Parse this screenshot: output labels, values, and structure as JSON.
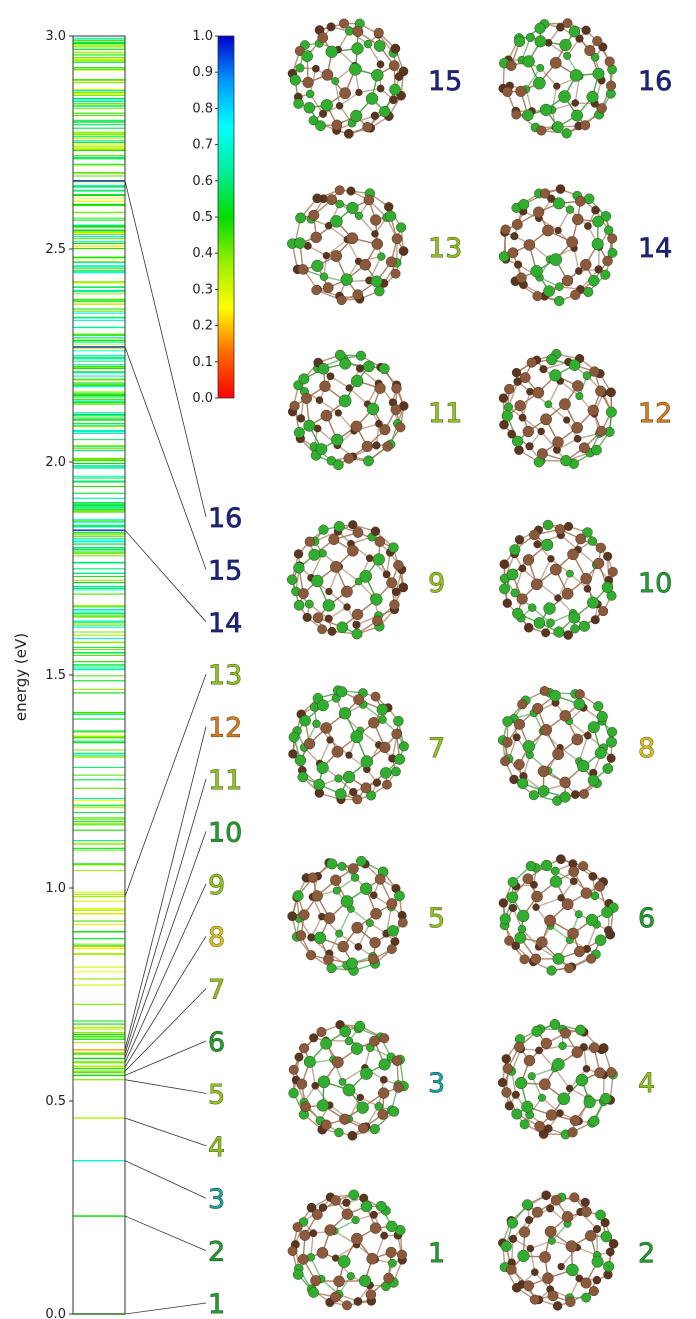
{
  "chart_data": {
    "type": "spectrum",
    "ylabel": "energy (eV)",
    "ylim": [
      0.0,
      3.0
    ],
    "yticks": [
      "0.0",
      "0.5",
      "1.0",
      "1.5",
      "2.0",
      "2.5",
      "3.0"
    ],
    "colorbar": {
      "range": [
        0.0,
        1.0
      ],
      "ticks": [
        "0.0",
        "0.1",
        "0.2",
        "0.3",
        "0.4",
        "0.5",
        "0.6",
        "0.7",
        "0.8",
        "0.9",
        "1.0"
      ],
      "colormap": "jet-reversed (0 red, 0.5 green, 1 blue)"
    },
    "labeled_states": [
      {
        "n": "1",
        "energy": 0.0,
        "value": 0.48
      },
      {
        "n": "2",
        "energy": 0.23,
        "value": 0.5
      },
      {
        "n": "3",
        "energy": 0.36,
        "value": 0.7
      },
      {
        "n": "4",
        "energy": 0.46,
        "value": 0.35
      },
      {
        "n": "5",
        "energy": 0.55,
        "value": 0.38
      },
      {
        "n": "6",
        "energy": 0.56,
        "value": 0.5
      },
      {
        "n": "7",
        "energy": 0.57,
        "value": 0.4
      },
      {
        "n": "8",
        "energy": 0.58,
        "value": 0.28
      },
      {
        "n": "9",
        "energy": 0.59,
        "value": 0.4
      },
      {
        "n": "10",
        "energy": 0.6,
        "value": 0.5
      },
      {
        "n": "11",
        "energy": 0.61,
        "value": 0.42
      },
      {
        "n": "12",
        "energy": 0.62,
        "value": 0.18
      },
      {
        "n": "13",
        "energy": 0.98,
        "value": 0.36
      },
      {
        "n": "14",
        "energy": 1.84,
        "value": 0.97
      },
      {
        "n": "15",
        "energy": 2.27,
        "value": 0.97
      },
      {
        "n": "16",
        "energy": 2.66,
        "value": 0.97
      }
    ],
    "spectrum_bands": [
      {
        "from": 0.55,
        "to": 0.7,
        "count": 16,
        "vmin": 0.3,
        "vmax": 0.55
      },
      {
        "from": 0.72,
        "to": 1.05,
        "count": 26,
        "vmin": 0.2,
        "vmax": 0.55
      },
      {
        "from": 1.05,
        "to": 1.5,
        "count": 48,
        "vmin": 0.25,
        "vmax": 0.65
      },
      {
        "from": 1.5,
        "to": 2.0,
        "count": 95,
        "vmin": 0.35,
        "vmax": 0.75
      },
      {
        "from": 2.0,
        "to": 2.5,
        "count": 110,
        "vmin": 0.3,
        "vmax": 0.75
      },
      {
        "from": 2.5,
        "to": 3.0,
        "count": 120,
        "vmin": 0.25,
        "vmax": 0.7
      }
    ]
  },
  "panels": [
    {
      "n": "15",
      "value": 0.97
    },
    {
      "n": "16",
      "value": 0.97
    },
    {
      "n": "13",
      "value": 0.36
    },
    {
      "n": "14",
      "value": 0.97
    },
    {
      "n": "11",
      "value": 0.42
    },
    {
      "n": "12",
      "value": 0.18
    },
    {
      "n": "9",
      "value": 0.4
    },
    {
      "n": "10",
      "value": 0.5
    },
    {
      "n": "7",
      "value": 0.4
    },
    {
      "n": "8",
      "value": 0.28
    },
    {
      "n": "5",
      "value": 0.38
    },
    {
      "n": "6",
      "value": 0.5
    },
    {
      "n": "3",
      "value": 0.7
    },
    {
      "n": "4",
      "value": 0.35
    },
    {
      "n": "1",
      "value": 0.48
    },
    {
      "n": "2",
      "value": 0.5
    }
  ],
  "colors": {
    "atom_carbon": "#8b5a3c",
    "atom_carbon_dark": "#5a3520",
    "atom_green": "#2fae2f",
    "bond_carbon": "#a07050",
    "bond_green": "#3a9a3a"
  }
}
